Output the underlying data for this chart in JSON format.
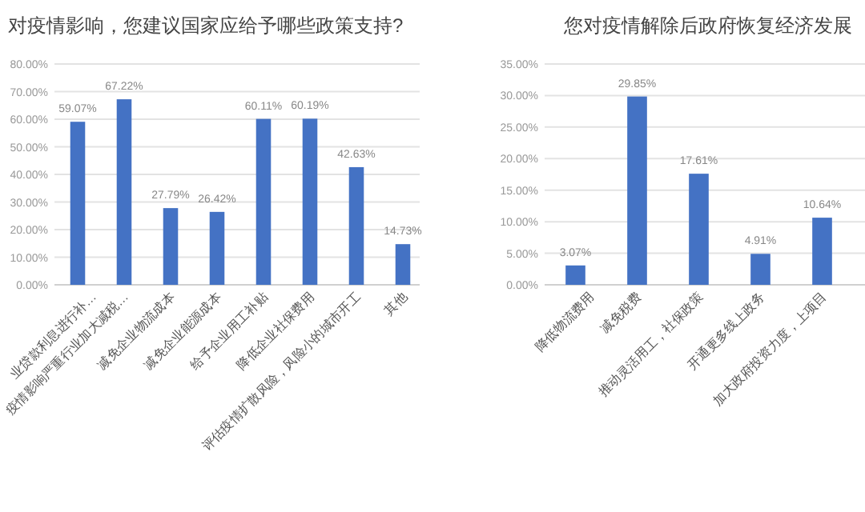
{
  "chart_data": [
    {
      "type": "bar",
      "title": "对疫情影响，您建议国家应给予哪些政策支持?",
      "categories": [
        "业贷款利息进行补…",
        "疫情影响严重行业加大减税…",
        "减免企业物流成本",
        "减免企业能源成本",
        "给予企业用工补贴",
        "降低企业社保费用",
        "评估疫情扩散风险，风险小的城市开工",
        "其他"
      ],
      "series": [
        {
          "color": "#4472c4",
          "values": [
            59.07,
            67.22,
            27.79,
            26.42,
            60.11,
            60.19,
            42.63,
            14.73
          ],
          "value_labels": [
            "59.07%",
            "67.22%",
            "27.79%",
            "26.42%",
            "60.11%",
            "60.19%",
            "42.63%",
            "14.73%"
          ]
        }
      ],
      "ylim": [
        0,
        80
      ],
      "yticks": [
        {
          "value": 0,
          "label": "0.00%"
        },
        {
          "value": 10,
          "label": "10.00%"
        },
        {
          "value": 20,
          "label": "20.00%"
        },
        {
          "value": 30,
          "label": "30.00%"
        },
        {
          "value": 40,
          "label": "40.00%"
        },
        {
          "value": 50,
          "label": "50.00%"
        },
        {
          "value": 60,
          "label": "60.00%"
        },
        {
          "value": 70,
          "label": "70.00%"
        },
        {
          "value": 80,
          "label": "80.00%"
        }
      ],
      "grid": "y"
    },
    {
      "type": "bar",
      "title": "您对疫情解除后政府恢复经济发展",
      "categories": [
        "降低物流费用",
        "减免税费",
        "推动灵活用工，社保政策",
        "开通更多线上政务",
        "加大政府投资力度，上项目"
      ],
      "series": [
        {
          "color": "#4472c4",
          "values": [
            3.07,
            29.85,
            17.61,
            4.91,
            10.64
          ],
          "value_labels": [
            "3.07%",
            "29.85%",
            "17.61%",
            "4.91%",
            "10.64%"
          ]
        }
      ],
      "ylim": [
        0,
        35
      ],
      "yticks": [
        {
          "value": 0,
          "label": "0.00%"
        },
        {
          "value": 5,
          "label": "5.00%"
        },
        {
          "value": 10,
          "label": "10.00%"
        },
        {
          "value": 15,
          "label": "15.00%"
        },
        {
          "value": 20,
          "label": "20.00%"
        },
        {
          "value": 25,
          "label": "25.00%"
        },
        {
          "value": 30,
          "label": "30.00%"
        },
        {
          "value": 35,
          "label": "35.00%"
        }
      ],
      "grid": "y"
    }
  ]
}
